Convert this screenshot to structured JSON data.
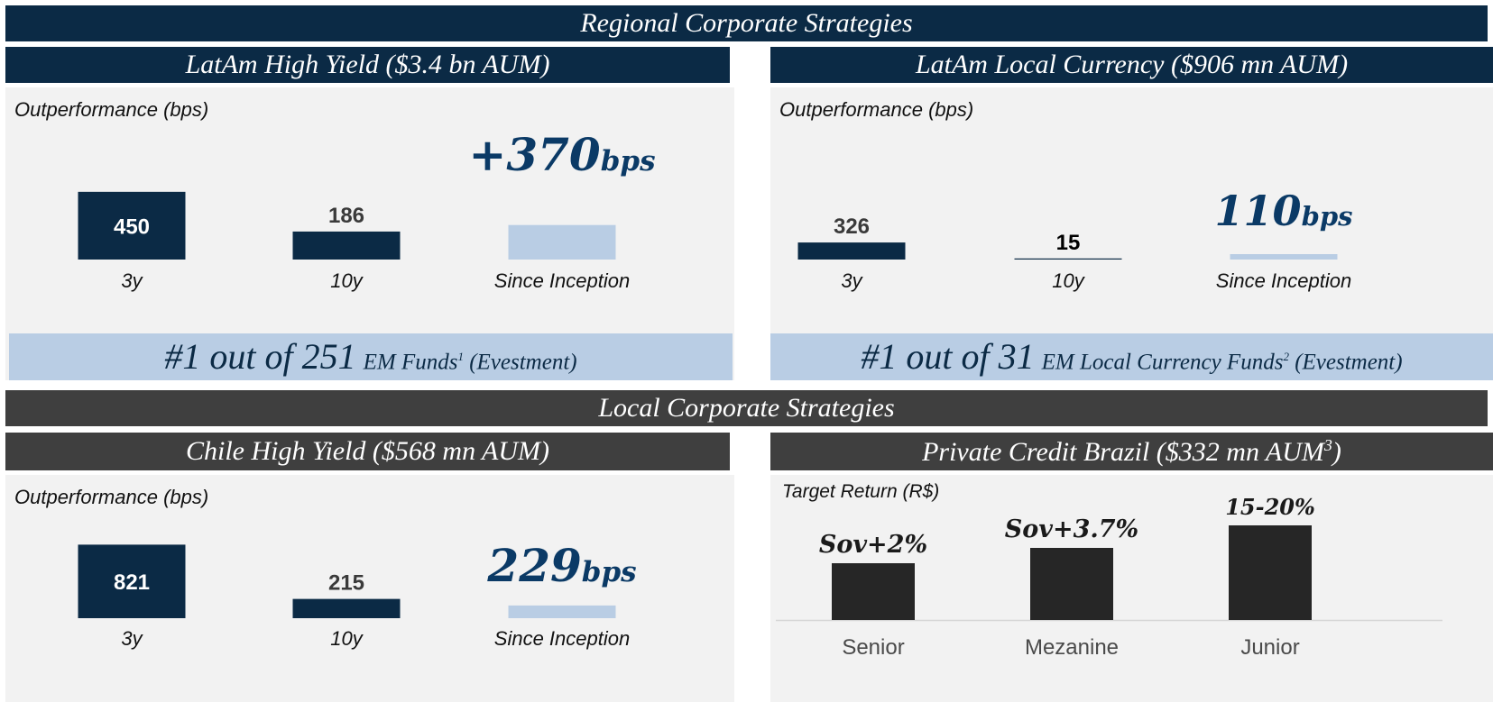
{
  "title_regional": "Regional Corporate Strategies",
  "title_local": "Local Corporate Strategies",
  "rank1": {
    "big": "#1 out of 251",
    "text": "EM Funds",
    "sup": "1",
    "source": "(Evestment)"
  },
  "rank2": {
    "big": "#1 out of 31",
    "text": "EM Local Currency Funds",
    "sup": "2",
    "source": "(Evestment)"
  },
  "colors": {
    "navy": "#0b2a45",
    "light_blue": "#b9cde4",
    "dark_gray": "#3f3f3f",
    "bar_black": "#262626",
    "panel": "#f2f2f2"
  },
  "chart_data": [
    {
      "type": "bar",
      "title": "LatAm High Yield ($3.4 bn AUM)",
      "ylabel": "Outperformance (bps)",
      "categories": [
        "3y",
        "10y",
        "Since Inception"
      ],
      "values": [
        450,
        186,
        370
      ],
      "data_labels": [
        "450",
        "186",
        "+370bps"
      ],
      "highlight": {
        "number": "+370",
        "unit": "bps"
      },
      "bar_colors": [
        "#0b2a45",
        "#0b2a45",
        "#b9cde4"
      ]
    },
    {
      "type": "bar",
      "title": "LatAm Local Currency ($906 mn AUM)",
      "ylabel": "Outperformance (bps)",
      "categories": [
        "3y",
        "10y",
        "Since Inception"
      ],
      "values": [
        326,
        15,
        110
      ],
      "data_labels": [
        "326",
        "15",
        "110bps"
      ],
      "highlight": {
        "number": "110",
        "unit": "bps"
      },
      "bar_colors": [
        "#0b2a45",
        "#0b2a45",
        "#b9cde4"
      ]
    },
    {
      "type": "bar",
      "title": "Chile High Yield ($568 mn AUM)",
      "ylabel": "Outperformance (bps)",
      "categories": [
        "3y",
        "10y",
        "Since Inception"
      ],
      "values": [
        821,
        215,
        229
      ],
      "data_labels": [
        "821",
        "215",
        "229bps"
      ],
      "highlight": {
        "number": "229",
        "unit": "bps"
      },
      "bar_colors": [
        "#0b2a45",
        "#0b2a45",
        "#b9cde4"
      ]
    },
    {
      "type": "bar",
      "title": "Private Credit Brazil ($332 mn AUM",
      "title_sup": "3",
      "title_end": ")",
      "ylabel": "Target Return (R$)",
      "categories": [
        "Senior",
        "Mezanine",
        "Junior"
      ],
      "values": [
        2,
        3.7,
        17.5
      ],
      "data_labels": [
        "Sov+2%",
        "Sov+3.7%",
        "15-20%"
      ],
      "bar_colors": [
        "#262626",
        "#262626",
        "#262626"
      ]
    }
  ]
}
